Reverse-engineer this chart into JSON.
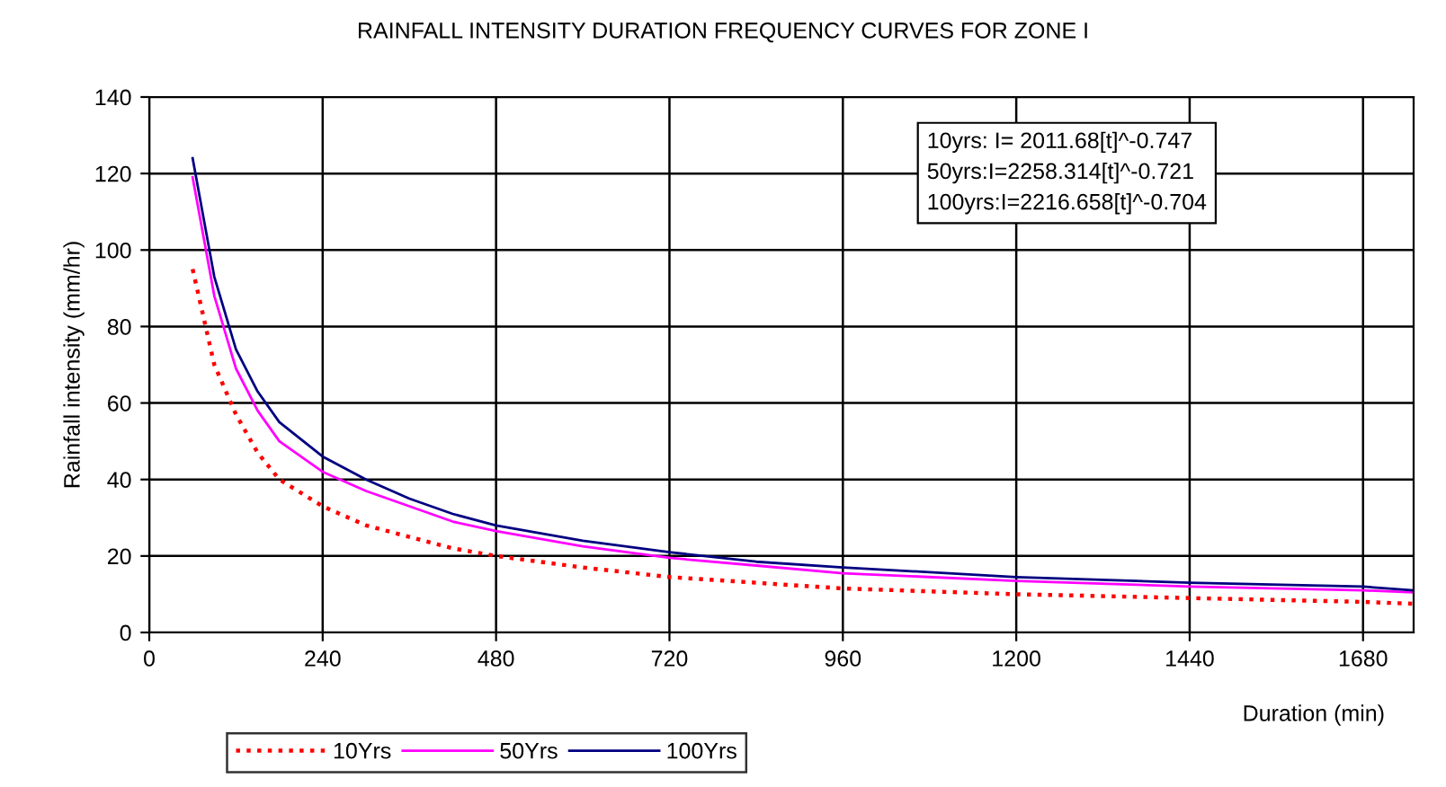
{
  "chart_data": {
    "type": "line",
    "title": "RAINFALL INTENSITY DURATION FREQUENCY CURVES FOR ZONE I",
    "xlabel": "Duration (min)",
    "ylabel": "Rainfall intensity (mm/hr)",
    "x": [
      60,
      90,
      120,
      150,
      180,
      240,
      300,
      360,
      420,
      480,
      600,
      720,
      840,
      960,
      1200,
      1440,
      1680,
      1750
    ],
    "series": [
      {
        "name": "10Yrs",
        "color": "#ff0000",
        "line_style": "dotted",
        "values": [
          95,
          70,
          57,
          47,
          40,
          33,
          28,
          25,
          22,
          20,
          17,
          14.5,
          13,
          11.5,
          10,
          9,
          8,
          7.5
        ]
      },
      {
        "name": "50Yrs",
        "color": "#ff00ff",
        "line_style": "solid",
        "values": [
          119,
          88,
          69,
          58,
          50,
          42,
          37,
          33,
          29,
          26.5,
          22.5,
          19.5,
          17.5,
          15.5,
          13.5,
          12,
          11,
          10.5
        ]
      },
      {
        "name": "100Yrs",
        "color": "#000080",
        "line_style": "solid",
        "values": [
          124,
          93,
          74,
          63,
          55,
          46,
          40,
          35,
          31,
          28,
          24,
          21,
          18.5,
          17,
          14.5,
          13,
          12,
          11
        ]
      }
    ],
    "xlim": [
      0,
      1750
    ],
    "xticks": [
      0,
      240,
      480,
      720,
      960,
      1200,
      1440,
      1680
    ],
    "ylim": [
      0,
      140
    ],
    "yticks": [
      0,
      20,
      40,
      60,
      80,
      100,
      120,
      140
    ],
    "grid": true,
    "legend": "bottom",
    "marker": "none",
    "annotations": [
      "10yrs: I= 2011.68[t]^-0.747",
      "50yrs:I=2258.314[t]^-0.721",
      "100yrs:I=2216.658[t]^-0.704"
    ]
  }
}
